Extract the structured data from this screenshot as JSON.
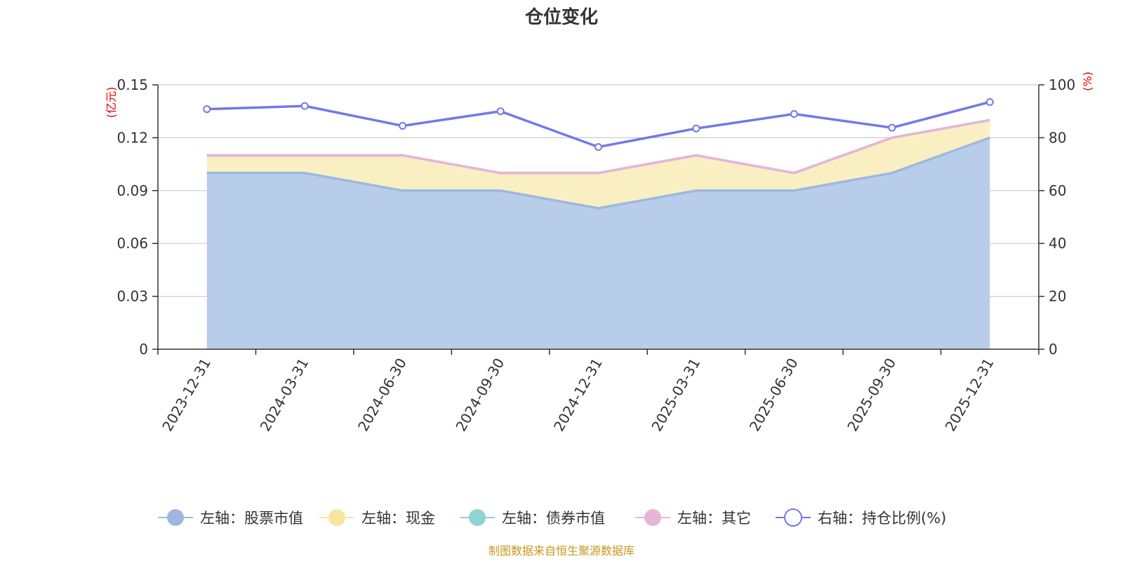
{
  "chart_data": {
    "type": "area",
    "title": "仓位变化",
    "categories": [
      "2023-12-31",
      "2024-03-31",
      "2024-06-30",
      "2024-09-30",
      "2024-12-31",
      "2025-03-31",
      "2025-06-30",
      "2025-09-30",
      "2025-12-31"
    ],
    "left_axis": {
      "unit": "(亿元)",
      "ylim": [
        0,
        0.15
      ],
      "ticks": [
        "0",
        "0.03",
        "0.06",
        "0.09",
        "0.12",
        "0.15"
      ],
      "tick_values": [
        0,
        0.03,
        0.06,
        0.09,
        0.12,
        0.15
      ]
    },
    "right_axis": {
      "unit": "(%)",
      "ylim": [
        0,
        100
      ],
      "ticks": [
        "0",
        "20",
        "40",
        "60",
        "80",
        "100"
      ],
      "tick_values": [
        0,
        20,
        40,
        60,
        80,
        100
      ]
    },
    "grid": true,
    "stacked": true,
    "series": [
      {
        "name": "左轴：股票市值",
        "axis": "left",
        "type": "area",
        "color": "#9db8e0",
        "fill": "#b8cdea",
        "values": [
          0.1,
          0.1,
          0.09,
          0.09,
          0.08,
          0.09,
          0.09,
          0.1,
          0.12
        ]
      },
      {
        "name": "左轴：现金",
        "axis": "left",
        "type": "area",
        "color": "#f8e6a0",
        "fill": "#faefc3",
        "values": [
          0.01,
          0.01,
          0.02,
          0.01,
          0.02,
          0.02,
          0.01,
          0.02,
          0.01
        ]
      },
      {
        "name": "左轴：债券市值",
        "axis": "left",
        "type": "area",
        "color": "#8fd3d3",
        "fill": "#b5e3e3",
        "values": [
          0,
          0,
          0,
          0,
          0,
          0,
          0,
          0,
          0
        ]
      },
      {
        "name": "左轴：其它",
        "axis": "left",
        "type": "area",
        "color": "#e8b4d8",
        "fill": "#f3d6ea",
        "values": [
          0,
          0,
          0,
          0,
          0,
          0,
          0,
          0,
          0
        ]
      },
      {
        "name": "右轴：持仓比例(%)",
        "axis": "right",
        "type": "line",
        "color": "#7478e8",
        "values": [
          90.8,
          92.0,
          84.5,
          90.0,
          76.5,
          83.5,
          89.0,
          83.8,
          93.5
        ]
      }
    ],
    "legend_position": "bottom",
    "source": "制图数据来自恒生聚源数据库"
  }
}
